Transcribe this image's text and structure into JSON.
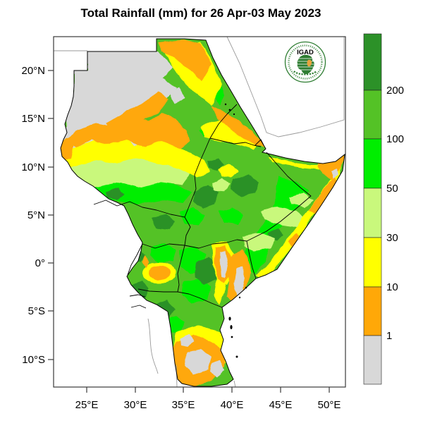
{
  "title": "Total Rainfall (mm) for 26 Apr-03 May 2023",
  "logo": {
    "text": "IGAD",
    "color": "#2e7d32",
    "region_highlight_color": "#e8a33d"
  },
  "axes": {
    "y_ticks": [
      "20°N",
      "15°N",
      "10°N",
      "5°N",
      "0°",
      "5°S",
      "10°S"
    ],
    "x_ticks": [
      "25°E",
      "30°E",
      "35°E",
      "40°E",
      "45°E",
      "50°E"
    ]
  },
  "legend": {
    "labels": [
      "200",
      "100",
      "50",
      "30",
      "10",
      "1"
    ],
    "bins": [
      {
        "range": "> 200 mm",
        "color": "#2c9128"
      },
      {
        "range": "100–200 mm",
        "color": "#54c226"
      },
      {
        "range": "50–100 mm",
        "color": "#00ee00"
      },
      {
        "range": "30–50 mm",
        "color": "#c9f87c"
      },
      {
        "range": "10–30 mm",
        "color": "#ffff00"
      },
      {
        "range": "1–10 mm",
        "color": "#ffa808"
      },
      {
        "range": "< 1 mm",
        "color": "#d8d8d8"
      }
    ]
  },
  "map": {
    "lon_range_deg_e": [
      21.6,
      51.7
    ],
    "lat_range_deg": [
      -12.9,
      23.5
    ],
    "ocean_color": "#ffffff",
    "border_color": "#000000",
    "neighbor_line_color": "#999999"
  }
}
